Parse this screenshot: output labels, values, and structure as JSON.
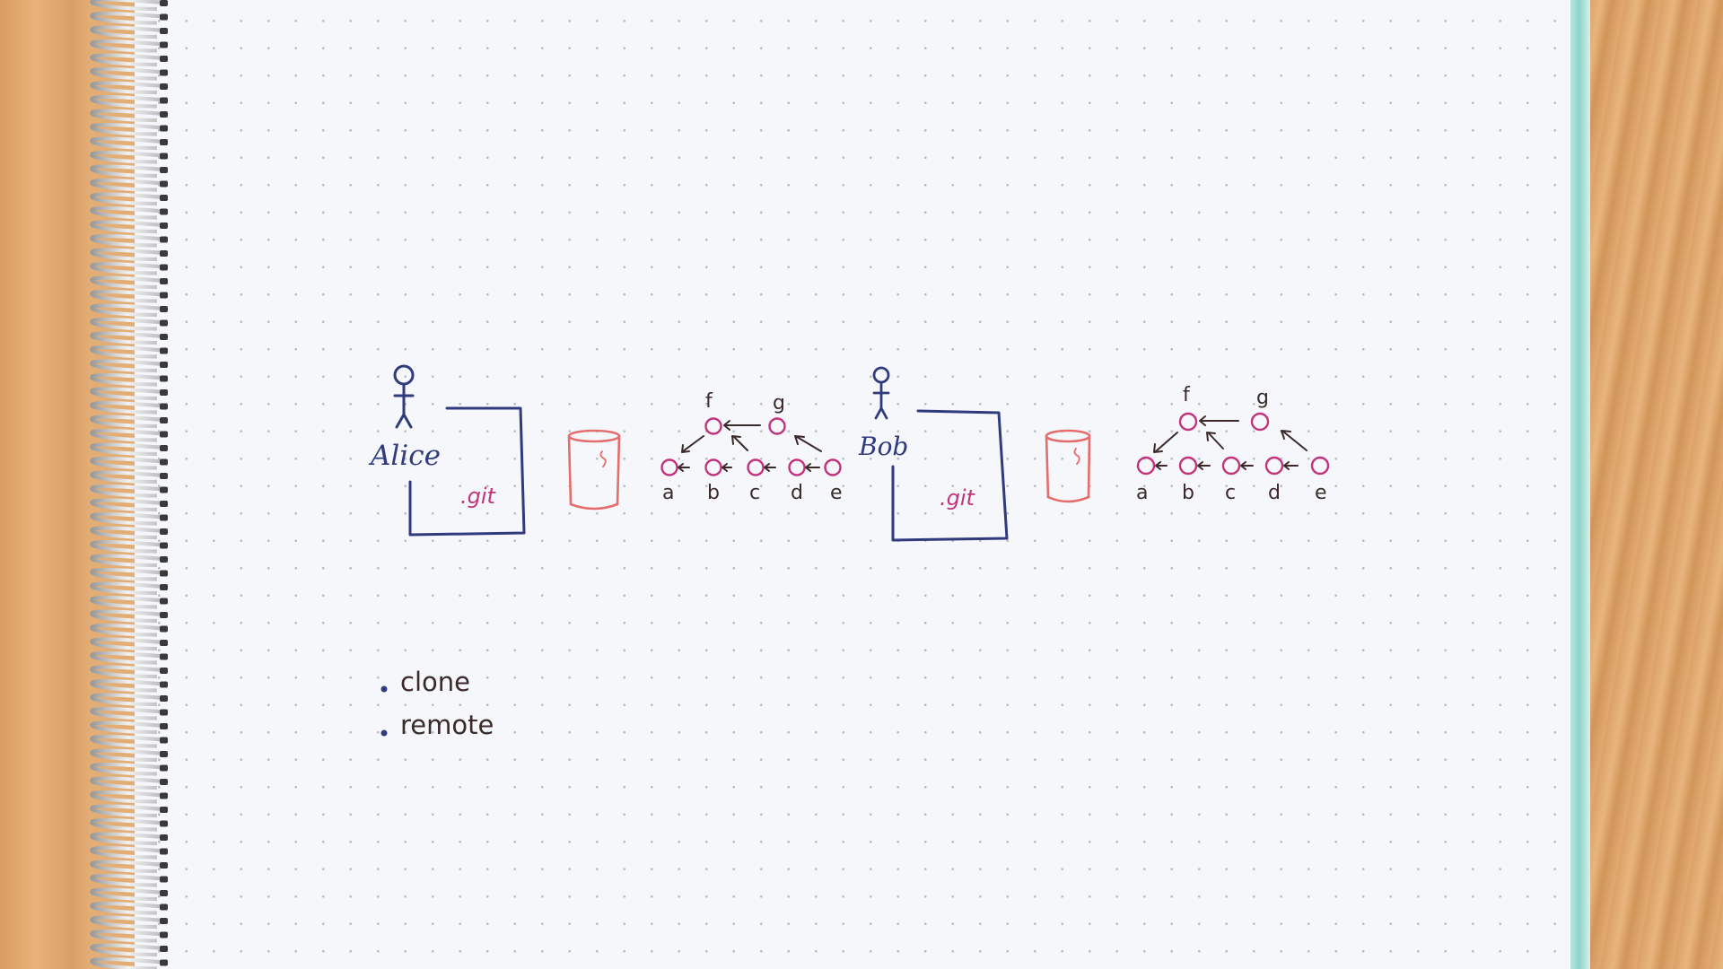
{
  "scene": {
    "people": [
      {
        "name": "Alice"
      },
      {
        "name": "Bob"
      }
    ],
    "repo_label": ".git",
    "commit_labels": [
      "a",
      "b",
      "c",
      "d",
      "e"
    ],
    "branch_labels": [
      "f",
      "g"
    ],
    "notes": [
      "clone",
      "remote"
    ],
    "colors": {
      "blue_ink": "#2f3b7d",
      "pink_ink": "#c2337e",
      "red_ink": "#e46d6d",
      "dark_ink": "#3a2a2a",
      "paper": "#f6f7fa"
    }
  }
}
